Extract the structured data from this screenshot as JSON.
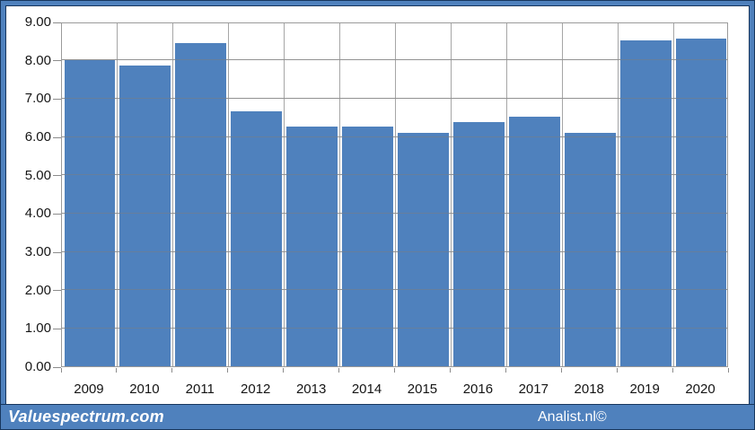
{
  "chart_data": {
    "type": "bar",
    "categories": [
      "2009",
      "2010",
      "2011",
      "2012",
      "2013",
      "2014",
      "2015",
      "2016",
      "2017",
      "2018",
      "2019",
      "2020"
    ],
    "values": [
      8.0,
      7.85,
      8.43,
      6.65,
      6.25,
      6.25,
      6.1,
      6.38,
      6.52,
      6.1,
      8.52,
      8.56
    ],
    "title": "",
    "xlabel": "",
    "ylabel": "",
    "ylim": [
      0,
      9
    ],
    "ytick_step": 1,
    "ytick_labels": [
      "0.00",
      "1.00",
      "2.00",
      "3.00",
      "4.00",
      "5.00",
      "6.00",
      "7.00",
      "8.00",
      "9.00"
    ],
    "grid": true,
    "legend": "none",
    "bar_color": "#4f81bd",
    "gridline_color": "#a6a6a6",
    "plot_background": "#ffffff"
  },
  "frame": {
    "border_color": "#4f81bd",
    "outline_color": "#17365d"
  },
  "footer": {
    "left_brand": "Valuespectrum.com",
    "right_brand": "Analist.nl©",
    "background": "#4f81bd",
    "text_color": "#ffffff"
  }
}
